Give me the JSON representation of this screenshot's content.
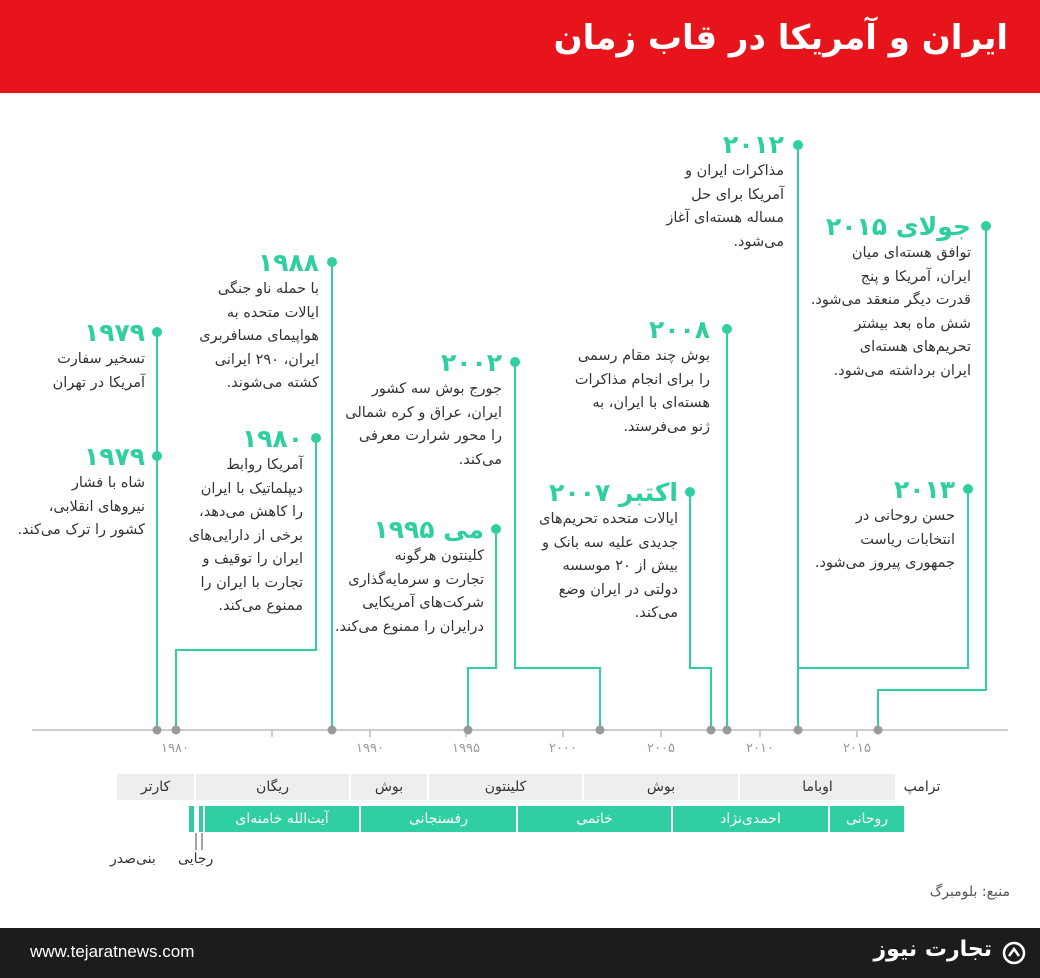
{
  "header": {
    "title": "ایران و آمریکا در قاب زمان"
  },
  "colors": {
    "header": "#e8141b",
    "accent": "#2fcfa1",
    "footer": "#1c1c1c"
  },
  "axis": {
    "ticks": [
      "۱۹۸۰",
      "۱۹۹۰",
      "۱۹۹۵",
      "۲۰۰۰",
      "۲۰۰۵",
      "۲۰۱۰",
      "۲۰۱۵"
    ]
  },
  "events": [
    {
      "year": "۱۹۷۹",
      "text": [
        "تسخیر سفارت",
        "آمریکا در تهران"
      ]
    },
    {
      "year": "۱۹۷۹",
      "text": [
        "شاه با فشار",
        "نیروهای انقلابی،",
        "کشور را ترک می‌کند."
      ]
    },
    {
      "year": "۱۹۸۰",
      "text": [
        "آمریکا روابط",
        "دیپلماتیک با ایران",
        "را کاهش می‌دهد،",
        "برخی از دارایی‌های",
        "ایران را توقیف و",
        "تجارت با ایران را",
        "ممنوع می‌کند."
      ]
    },
    {
      "year": "۱۹۸۸",
      "text": [
        "با حمله ناو جنگی",
        "ایالات متحده به",
        "هواپیمای مسافربری",
        "ایران، ۲۹۰ ایرانی",
        "کشته می‌شوند."
      ]
    },
    {
      "year": "می ۱۹۹۵",
      "text": [
        "کلینتون هرگونه",
        "تجارت و سرمایه‌گذاری",
        "شرکت‌های آمریکایی",
        "درایران را ممنوع می‌کند."
      ]
    },
    {
      "year": "۲۰۰۲",
      "text": [
        "جورج بوش سه کشور",
        "ایران، عراق و کره شمالی",
        "را محور شرارت معرفی",
        "می‌کند."
      ]
    },
    {
      "year": "اکتبر ۲۰۰۷",
      "text": [
        "ایالات متحده تحریم‌های",
        "جدیدی علیه سه بانک و",
        "بیش از ۲۰ موسسه",
        "دولتی در ایران وضع",
        "می‌کند."
      ]
    },
    {
      "year": "۲۰۰۸",
      "text": [
        "بوش چند مقام رسمی",
        "را برای انجام مذاکرات",
        "هسته‌ای با ایران، به",
        "ژنو می‌فرستد."
      ]
    },
    {
      "year": "۲۰۱۲",
      "text": [
        "مذاکرات ایران و",
        "آمریکا برای حل",
        "مساله هسته‌ای آغاز",
        "می‌شود."
      ]
    },
    {
      "year": "۲۰۱۳",
      "text": [
        "حسن روحانی در",
        "انتخابات ریاست",
        "جمهوری پیروز می‌شود."
      ]
    },
    {
      "year": "جولای ۲۰۱۵",
      "text": [
        "توافق هسته‌ای میان",
        "ایران، آمریکا و پنج",
        "قدرت دیگر منعقد می‌شود.",
        "شش ماه بعد بیشتر",
        "تحریم‌های هسته‌ای",
        "ایران برداشته می‌شود."
      ]
    }
  ],
  "presidents": [
    "کارتر",
    "ریگان",
    "بوش",
    "کلینتون",
    "بوش",
    "اوباما",
    "ترامپ"
  ],
  "iran_leaders": [
    "آیت‌الله خامنه‌ای",
    "رفسنجانی",
    "خاتمی",
    "احمدی‌نژاد",
    "روحانی"
  ],
  "iran_notes": {
    "banisadr": "بنی‌صدر",
    "rajaei": "رجایی"
  },
  "source": "منبع: بلومبرگ",
  "footer": {
    "website": "www.tejaratnews.com",
    "brand": "تجارت نیوز"
  }
}
